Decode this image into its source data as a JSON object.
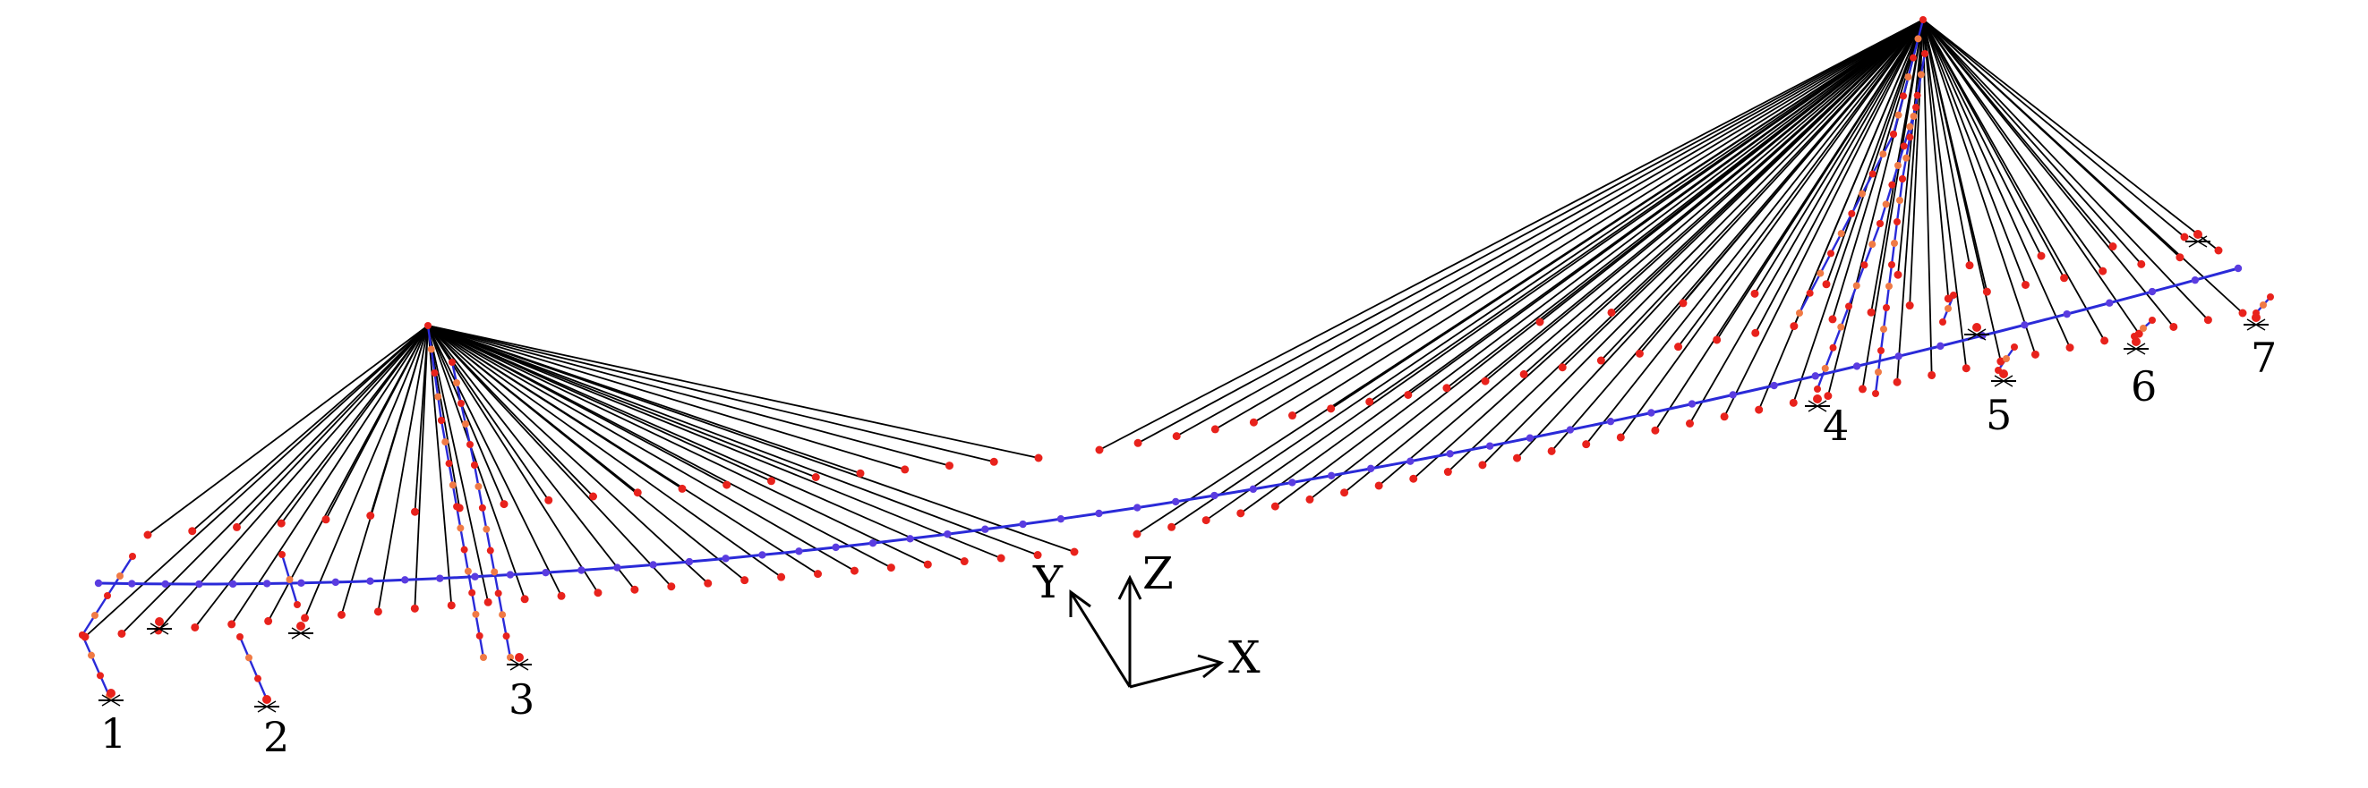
{
  "colors": {
    "cable": "#000000",
    "node": "#e8221c",
    "node_light": "#f07a45",
    "deck": "#2a2ad8",
    "deck_node": "#5a3ce0",
    "axis": "#000000"
  },
  "piers": [
    {
      "id": "pier-1",
      "label": "1"
    },
    {
      "id": "pier-2",
      "label": "2"
    },
    {
      "id": "pier-3",
      "label": "3"
    },
    {
      "id": "pier-4",
      "label": "4"
    },
    {
      "id": "pier-5",
      "label": "5"
    },
    {
      "id": "pier-6",
      "label": "6"
    },
    {
      "id": "pier-7",
      "label": "7"
    }
  ],
  "axes": {
    "x": "X",
    "y": "Y",
    "z": "Z"
  }
}
